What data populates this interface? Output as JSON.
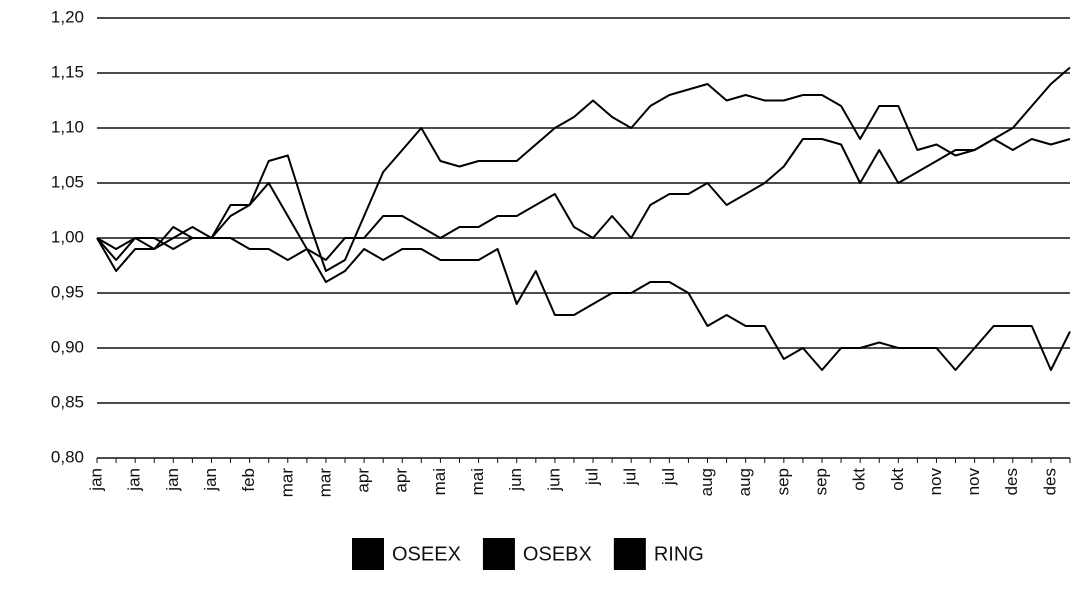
{
  "chart_data": {
    "type": "line",
    "categories": [
      "jan",
      null,
      "jan",
      null,
      "jan",
      null,
      "jan",
      null,
      "feb",
      null,
      "mar",
      null,
      "mar",
      null,
      "apr",
      null,
      "apr",
      null,
      "mai",
      null,
      "mai",
      null,
      "jun",
      null,
      "jun",
      null,
      "jul",
      null,
      "jul",
      null,
      "jul",
      null,
      "aug",
      null,
      "aug",
      null,
      "sep",
      null,
      "sep",
      null,
      "okt",
      null,
      "okt",
      null,
      "nov",
      null,
      "nov",
      null,
      "des",
      null,
      "des",
      null
    ],
    "series": [
      {
        "name": "OSEEX",
        "color": "#000000",
        "values": [
          1.0,
          0.98,
          1.0,
          0.99,
          1.0,
          1.01,
          1.0,
          1.03,
          1.03,
          1.07,
          1.075,
          1.02,
          0.97,
          0.98,
          1.02,
          1.06,
          1.08,
          1.1,
          1.07,
          1.065,
          1.07,
          1.07,
          1.07,
          1.085,
          1.1,
          1.11,
          1.125,
          1.11,
          1.1,
          1.12,
          1.13,
          1.135,
          1.14,
          1.125,
          1.13,
          1.125,
          1.125,
          1.13,
          1.13,
          1.12,
          1.09,
          1.12,
          1.12,
          1.08,
          1.085,
          1.075,
          1.08,
          1.09,
          1.1,
          1.12,
          1.14,
          1.155
        ]
      },
      {
        "name": "OSEBX",
        "color": "#000000",
        "values": [
          1.0,
          0.99,
          1.0,
          1.0,
          0.99,
          1.0,
          1.0,
          1.02,
          1.03,
          1.05,
          1.02,
          0.99,
          0.98,
          1.0,
          1.0,
          1.02,
          1.02,
          1.01,
          1.0,
          1.01,
          1.01,
          1.02,
          1.02,
          1.03,
          1.04,
          1.01,
          1.0,
          1.02,
          1.0,
          1.03,
          1.04,
          1.04,
          1.05,
          1.03,
          1.04,
          1.05,
          1.065,
          1.09,
          1.09,
          1.085,
          1.05,
          1.08,
          1.05,
          1.06,
          1.07,
          1.08,
          1.08,
          1.09,
          1.08,
          1.09,
          1.085,
          1.09
        ]
      },
      {
        "name": "RING",
        "color": "#000000",
        "values": [
          1.0,
          0.97,
          0.99,
          0.99,
          1.01,
          1.0,
          1.0,
          1.0,
          0.99,
          0.99,
          0.98,
          0.99,
          0.96,
          0.97,
          0.99,
          0.98,
          0.99,
          0.99,
          0.98,
          0.98,
          0.98,
          0.99,
          0.94,
          0.97,
          0.93,
          0.93,
          0.94,
          0.95,
          0.95,
          0.96,
          0.96,
          0.95,
          0.92,
          0.93,
          0.92,
          0.92,
          0.89,
          0.9,
          0.88,
          0.9,
          0.9,
          0.905,
          0.9,
          0.9,
          0.9,
          0.88,
          0.9,
          0.92,
          0.92,
          0.92,
          0.88,
          0.915
        ]
      }
    ],
    "ylim": [
      0.8,
      1.2
    ],
    "yticks": [
      {
        "value": 0.8,
        "label": "0,80"
      },
      {
        "value": 0.85,
        "label": "0,85"
      },
      {
        "value": 0.9,
        "label": "0,90"
      },
      {
        "value": 0.95,
        "label": "0,95"
      },
      {
        "value": 1.0,
        "label": "1,00"
      },
      {
        "value": 1.05,
        "label": "1,05"
      },
      {
        "value": 1.1,
        "label": "1,10"
      },
      {
        "value": 1.15,
        "label": "1,15"
      },
      {
        "value": 1.2,
        "label": "1,20"
      }
    ],
    "grid": true
  }
}
